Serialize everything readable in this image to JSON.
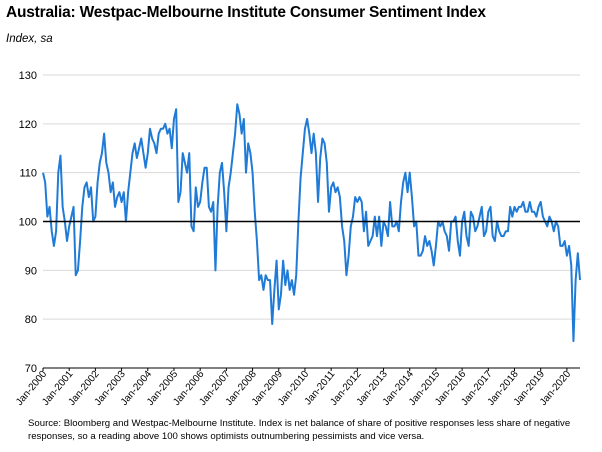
{
  "title": "Australia: Westpac-Melbourne Institute Consumer Sentiment Index",
  "subtitle": "Index, sa",
  "source": "Source: Bloomberg and Westpac-Melbourne Institute.  Index is net balance of share of positive responses less share of negative responses, so a reading above 100 shows optimists outnumbering pessimists and vice versa.",
  "colors": {
    "series": "#1f7bd6",
    "baseline": "#000000",
    "grid": "#d9d9d9"
  },
  "chart_data": {
    "type": "line",
    "title": "Australia: Westpac-Melbourne Institute Consumer Sentiment Index",
    "subtitle": "Index, sa",
    "ylim": [
      70,
      130
    ],
    "yticks": [
      70,
      80,
      90,
      100,
      110,
      120,
      130
    ],
    "xlim": [
      "2000-01",
      "2020-07"
    ],
    "xtick_labels": [
      "Jan-2000",
      "Jan-2001",
      "Jan-2002",
      "Jan-2003",
      "Jan-2004",
      "Jan-2005",
      "Jan-2006",
      "Jan-2007",
      "Jan-2008",
      "Jan-2009",
      "Jan-2010",
      "Jan-2011",
      "Jan-2012",
      "Jan-2013",
      "Jan-2014",
      "Jan-2015",
      "Jan-2016",
      "Jan-2017",
      "Jan-2018",
      "Jan-2019",
      "Jan-2020"
    ],
    "reference_line": 100,
    "grid": "horizontal",
    "series": [
      {
        "points": [
          [
            "2000-01",
            110
          ],
          [
            "2000-02",
            108
          ],
          [
            "2000-03",
            101
          ],
          [
            "2000-04",
            103
          ],
          [
            "2000-05",
            98
          ],
          [
            "2000-06",
            95
          ],
          [
            "2000-07",
            98
          ],
          [
            "2000-08",
            110
          ],
          [
            "2000-09",
            113.5
          ],
          [
            "2000-10",
            103
          ],
          [
            "2000-11",
            100
          ],
          [
            "2000-12",
            96
          ],
          [
            "2001-01",
            99
          ],
          [
            "2001-02",
            101
          ],
          [
            "2001-03",
            103
          ],
          [
            "2001-04",
            89
          ],
          [
            "2001-05",
            90
          ],
          [
            "2001-06",
            96
          ],
          [
            "2001-07",
            103
          ],
          [
            "2001-08",
            107
          ],
          [
            "2001-09",
            108
          ],
          [
            "2001-10",
            105
          ],
          [
            "2001-11",
            107
          ],
          [
            "2001-12",
            100
          ],
          [
            "2002-01",
            101
          ],
          [
            "2002-02",
            108
          ],
          [
            "2002-03",
            112
          ],
          [
            "2002-04",
            114
          ],
          [
            "2002-05",
            118
          ],
          [
            "2002-06",
            112
          ],
          [
            "2002-07",
            110
          ],
          [
            "2002-08",
            106
          ],
          [
            "2002-09",
            108
          ],
          [
            "2002-10",
            103
          ],
          [
            "2002-11",
            105
          ],
          [
            "2002-12",
            106
          ],
          [
            "2003-01",
            104
          ],
          [
            "2003-02",
            106
          ],
          [
            "2003-03",
            100
          ],
          [
            "2003-04",
            106
          ],
          [
            "2003-05",
            110
          ],
          [
            "2003-06",
            114
          ],
          [
            "2003-07",
            116
          ],
          [
            "2003-08",
            113
          ],
          [
            "2003-09",
            115
          ],
          [
            "2003-10",
            117
          ],
          [
            "2003-11",
            114
          ],
          [
            "2003-12",
            111
          ],
          [
            "2004-01",
            114
          ],
          [
            "2004-02",
            119
          ],
          [
            "2004-03",
            117
          ],
          [
            "2004-04",
            116
          ],
          [
            "2004-05",
            114
          ],
          [
            "2004-06",
            118
          ],
          [
            "2004-07",
            119
          ],
          [
            "2004-08",
            119
          ],
          [
            "2004-09",
            120
          ],
          [
            "2004-10",
            118
          ],
          [
            "2004-11",
            119
          ],
          [
            "2004-12",
            115
          ],
          [
            "2005-01",
            121
          ],
          [
            "2005-02",
            123
          ],
          [
            "2005-03",
            104
          ],
          [
            "2005-04",
            106
          ],
          [
            "2005-05",
            114
          ],
          [
            "2005-06",
            112
          ],
          [
            "2005-07",
            110
          ],
          [
            "2005-08",
            114
          ],
          [
            "2005-09",
            99
          ],
          [
            "2005-10",
            98
          ],
          [
            "2005-11",
            107
          ],
          [
            "2005-12",
            103
          ],
          [
            "2006-01",
            104
          ],
          [
            "2006-02",
            108
          ],
          [
            "2006-03",
            111
          ],
          [
            "2006-04",
            111
          ],
          [
            "2006-05",
            103
          ],
          [
            "2006-06",
            102
          ],
          [
            "2006-07",
            104
          ],
          [
            "2006-08",
            90
          ],
          [
            "2006-09",
            103
          ],
          [
            "2006-10",
            110
          ],
          [
            "2006-11",
            112
          ],
          [
            "2006-12",
            106
          ],
          [
            "2007-01",
            98
          ],
          [
            "2007-02",
            107
          ],
          [
            "2007-03",
            110
          ],
          [
            "2007-04",
            114
          ],
          [
            "2007-05",
            118
          ],
          [
            "2007-06",
            124
          ],
          [
            "2007-07",
            122
          ],
          [
            "2007-08",
            118
          ],
          [
            "2007-09",
            121
          ],
          [
            "2007-10",
            110
          ],
          [
            "2007-11",
            116
          ],
          [
            "2007-12",
            114
          ],
          [
            "2008-01",
            110
          ],
          [
            "2008-02",
            102
          ],
          [
            "2008-03",
            96
          ],
          [
            "2008-04",
            88
          ],
          [
            "2008-05",
            89
          ],
          [
            "2008-06",
            86
          ],
          [
            "2008-07",
            89
          ],
          [
            "2008-08",
            88
          ],
          [
            "2008-09",
            88
          ],
          [
            "2008-10",
            79
          ],
          [
            "2008-11",
            86
          ],
          [
            "2008-12",
            92
          ],
          [
            "2009-01",
            82
          ],
          [
            "2009-02",
            85
          ],
          [
            "2009-03",
            92
          ],
          [
            "2009-04",
            87
          ],
          [
            "2009-05",
            90
          ],
          [
            "2009-06",
            86
          ],
          [
            "2009-07",
            88
          ],
          [
            "2009-08",
            85
          ],
          [
            "2009-09",
            89
          ],
          [
            "2009-10",
            100
          ],
          [
            "2009-11",
            109
          ],
          [
            "2009-12",
            114
          ],
          [
            "2010-01",
            119
          ],
          [
            "2010-02",
            121
          ],
          [
            "2010-03",
            118
          ],
          [
            "2010-04",
            114
          ],
          [
            "2010-05",
            118
          ],
          [
            "2010-06",
            114
          ],
          [
            "2010-07",
            104
          ],
          [
            "2010-08",
            113
          ],
          [
            "2010-09",
            117
          ],
          [
            "2010-10",
            116
          ],
          [
            "2010-11",
            112
          ],
          [
            "2010-12",
            102
          ],
          [
            "2011-01",
            107
          ],
          [
            "2011-02",
            108
          ],
          [
            "2011-03",
            106
          ],
          [
            "2011-04",
            107
          ],
          [
            "2011-05",
            105
          ],
          [
            "2011-06",
            99
          ],
          [
            "2011-07",
            96
          ],
          [
            "2011-08",
            89
          ],
          [
            "2011-09",
            93
          ],
          [
            "2011-10",
            99
          ],
          [
            "2011-11",
            101
          ],
          [
            "2011-12",
            105
          ],
          [
            "2012-01",
            104
          ],
          [
            "2012-02",
            105
          ],
          [
            "2012-03",
            104
          ],
          [
            "2012-04",
            98
          ],
          [
            "2012-05",
            102
          ],
          [
            "2012-06",
            95
          ],
          [
            "2012-07",
            96
          ],
          [
            "2012-08",
            97
          ],
          [
            "2012-09",
            101
          ],
          [
            "2012-10",
            97
          ],
          [
            "2012-11",
            101
          ],
          [
            "2012-12",
            95
          ],
          [
            "2013-01",
            100
          ],
          [
            "2013-02",
            99
          ],
          [
            "2013-03",
            97
          ],
          [
            "2013-04",
            104
          ],
          [
            "2013-05",
            99
          ],
          [
            "2013-06",
            99
          ],
          [
            "2013-07",
            100
          ],
          [
            "2013-08",
            98
          ],
          [
            "2013-09",
            104
          ],
          [
            "2013-10",
            108
          ],
          [
            "2013-11",
            110
          ],
          [
            "2013-12",
            106
          ],
          [
            "2014-01",
            110
          ],
          [
            "2014-02",
            105
          ],
          [
            "2014-03",
            99
          ],
          [
            "2014-04",
            100
          ],
          [
            "2014-05",
            93
          ],
          [
            "2014-06",
            93
          ],
          [
            "2014-07",
            94
          ],
          [
            "2014-08",
            97
          ],
          [
            "2014-09",
            95
          ],
          [
            "2014-10",
            96
          ],
          [
            "2014-11",
            94
          ],
          [
            "2014-12",
            91
          ],
          [
            "2015-01",
            95
          ],
          [
            "2015-02",
            100
          ],
          [
            "2015-03",
            99
          ],
          [
            "2015-04",
            100
          ],
          [
            "2015-05",
            98
          ],
          [
            "2015-06",
            97
          ],
          [
            "2015-07",
            94
          ],
          [
            "2015-08",
            100
          ],
          [
            "2015-09",
            100
          ],
          [
            "2015-10",
            101
          ],
          [
            "2015-11",
            96
          ],
          [
            "2015-12",
            93
          ],
          [
            "2016-01",
            100
          ],
          [
            "2016-02",
            102
          ],
          [
            "2016-03",
            97
          ],
          [
            "2016-04",
            95
          ],
          [
            "2016-05",
            102
          ],
          [
            "2016-06",
            101
          ],
          [
            "2016-07",
            98
          ],
          [
            "2016-08",
            99
          ],
          [
            "2016-09",
            101
          ],
          [
            "2016-10",
            103
          ],
          [
            "2016-11",
            97
          ],
          [
            "2016-12",
            98
          ],
          [
            "2017-01",
            102
          ],
          [
            "2017-02",
            103
          ],
          [
            "2017-03",
            97
          ],
          [
            "2017-04",
            96
          ],
          [
            "2017-05",
            100
          ],
          [
            "2017-06",
            98
          ],
          [
            "2017-07",
            97
          ],
          [
            "2017-08",
            97
          ],
          [
            "2017-09",
            98
          ],
          [
            "2017-10",
            98
          ],
          [
            "2017-11",
            103
          ],
          [
            "2017-12",
            101
          ],
          [
            "2018-01",
            103
          ],
          [
            "2018-02",
            102
          ],
          [
            "2018-03",
            103
          ],
          [
            "2018-04",
            103
          ],
          [
            "2018-05",
            104
          ],
          [
            "2018-06",
            102
          ],
          [
            "2018-07",
            102
          ],
          [
            "2018-08",
            104
          ],
          [
            "2018-09",
            102
          ],
          [
            "2018-10",
            102
          ],
          [
            "2018-11",
            101
          ],
          [
            "2018-12",
            103
          ],
          [
            "2019-01",
            104
          ],
          [
            "2019-02",
            101
          ],
          [
            "2019-03",
            100
          ],
          [
            "2019-04",
            99
          ],
          [
            "2019-05",
            101
          ],
          [
            "2019-06",
            100
          ],
          [
            "2019-07",
            98
          ],
          [
            "2019-08",
            100
          ],
          [
            "2019-09",
            99
          ],
          [
            "2019-10",
            95
          ],
          [
            "2019-11",
            95
          ],
          [
            "2019-12",
            96
          ],
          [
            "2020-01",
            93
          ],
          [
            "2020-02",
            95
          ],
          [
            "2020-03",
            91
          ],
          [
            "2020-04",
            75.5
          ],
          [
            "2020-05",
            88
          ],
          [
            "2020-06",
            93.5
          ],
          [
            "2020-07",
            88
          ]
        ]
      }
    ]
  }
}
